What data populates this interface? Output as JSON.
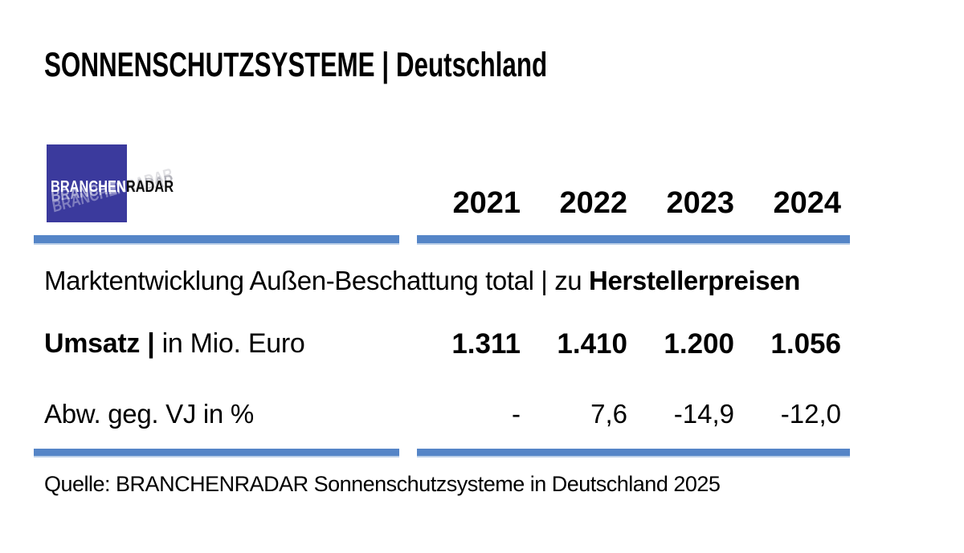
{
  "title": "SONNENSCHUTZSYSTEME | Deutschland",
  "logo": {
    "part1": "BRANCHEN",
    "part2": "RADAR"
  },
  "table": {
    "years": [
      "2021",
      "2022",
      "2023",
      "2024"
    ],
    "section": {
      "text": "Marktentwicklung Außen-Beschattung total | zu ",
      "text_bold": "Herstellerpreisen"
    },
    "rows": [
      {
        "label_bold": "Umsatz | ",
        "label": "in Mio. Euro",
        "values": [
          "1.311",
          "1.410",
          "1.200",
          "1.056"
        ]
      },
      {
        "label_bold": "",
        "label": "Abw. geg. VJ in %",
        "values": [
          "-",
          "7,6",
          "-14,9",
          "-12,0"
        ]
      }
    ]
  },
  "source": "Quelle: BRANCHENRADAR Sonnenschutzsysteme in Deutschland 2025",
  "colors": {
    "accent_bar": "#5585C7",
    "accent_bar_edge": "#BCD0E8",
    "logo_blue": "#3B3A9D",
    "text": "#000000"
  },
  "chart_data": {
    "type": "table",
    "title": "SONNENSCHUTZSYSTEME | Deutschland",
    "subtitle": "Marktentwicklung Außen-Beschattung total | zu Herstellerpreisen",
    "categories": [
      "2021",
      "2022",
      "2023",
      "2024"
    ],
    "series": [
      {
        "name": "Umsatz | in Mio. Euro",
        "values": [
          1311,
          1410,
          1200,
          1056
        ]
      },
      {
        "name": "Abw. geg. VJ in %",
        "values": [
          null,
          7.6,
          -14.9,
          -12.0
        ]
      }
    ],
    "source": "Quelle: BRANCHENRADAR Sonnenschutzsysteme in Deutschland 2025"
  }
}
